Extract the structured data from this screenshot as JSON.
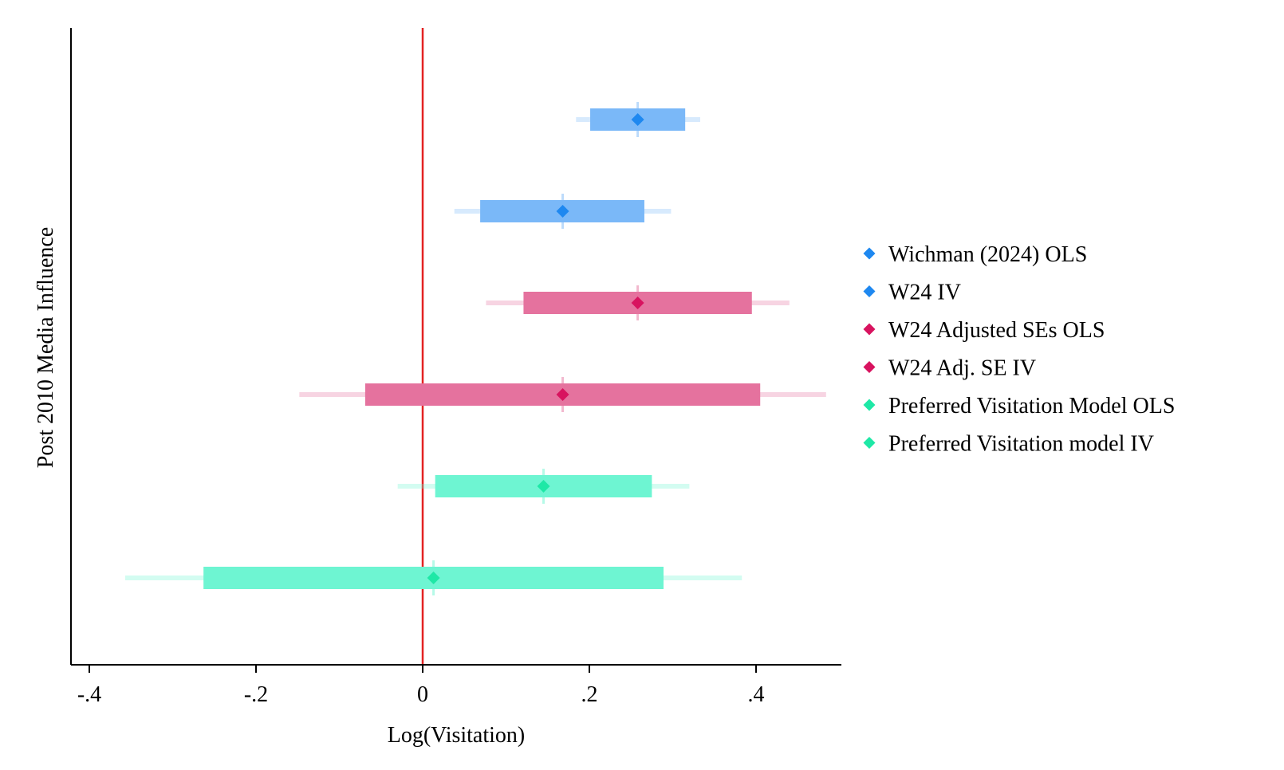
{
  "chart_data": {
    "type": "coefficient-plot",
    "xlabel": "Log(Visitation)",
    "ylabel": "Post 2010 Media Influence",
    "xlim": [
      -0.42,
      0.5
    ],
    "xticks": [
      {
        "value": -0.4,
        "label": "-.4"
      },
      {
        "value": -0.2,
        "label": "-.2"
      },
      {
        "value": 0,
        "label": "0"
      },
      {
        "value": 0.2,
        "label": ".2"
      },
      {
        "value": 0.4,
        "label": ".4"
      }
    ],
    "reference_line": {
      "x": 0,
      "color": "#e32222"
    },
    "grid": false,
    "legend_position": "right",
    "series": [
      {
        "name": "Wichman (2024) OLS",
        "color": "#1e88f0",
        "bar_color": "#7ab8f8",
        "estimate": 0.258,
        "ci_inner": [
          0.201,
          0.315
        ],
        "ci_outer": [
          0.184,
          0.333
        ]
      },
      {
        "name": "W24 IV",
        "color": "#1e88f0",
        "bar_color": "#7ab8f8",
        "estimate": 0.168,
        "ci_inner": [
          0.069,
          0.266
        ],
        "ci_outer": [
          0.038,
          0.298
        ]
      },
      {
        "name": "W24 Adjusted SEs OLS",
        "color": "#d8135f",
        "bar_color": "#e5729e",
        "estimate": 0.258,
        "ci_inner": [
          0.121,
          0.395
        ],
        "ci_outer": [
          0.076,
          0.44
        ]
      },
      {
        "name": "W24 Adj. SE IV",
        "color": "#d8135f",
        "bar_color": "#e5729e",
        "estimate": 0.168,
        "ci_inner": [
          -0.069,
          0.405
        ],
        "ci_outer": [
          -0.148,
          0.484
        ]
      },
      {
        "name": "Preferred Visitation Model OLS",
        "color": "#1ee8a6",
        "bar_color": "#6ef5d2",
        "estimate": 0.145,
        "ci_inner": [
          0.015,
          0.275
        ],
        "ci_outer": [
          -0.03,
          0.32
        ]
      },
      {
        "name": "Preferred Visitation model IV",
        "color": "#1ee8a6",
        "bar_color": "#6ef5d2",
        "estimate": 0.013,
        "ci_inner": [
          -0.263,
          0.289
        ],
        "ci_outer": [
          -0.357,
          0.383
        ]
      }
    ]
  }
}
